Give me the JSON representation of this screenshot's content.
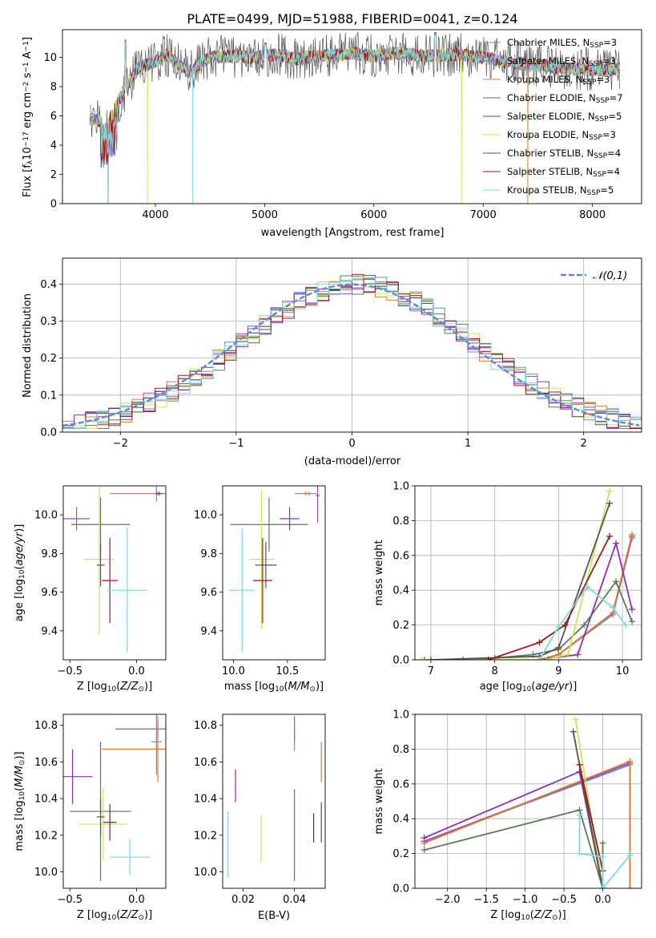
{
  "title": "PLATE=0499, MJD=51988, FIBERID=0041, z=0.124",
  "colors": {
    "Chabrier MILES": "#5b8ed6",
    "Salpeter MILES": "#9b4fc3",
    "Kroupa MILES": "#e07b2b",
    "Chabrier ELODIE": "#5a7a5a",
    "Salpeter ELODIE": "#8b2fb3",
    "Kroupa ELODIE": "#cde25a",
    "Chabrier STELIB": "#555555",
    "Salpeter STELIB": "#a01818",
    "Kroupa STELIB": "#7ed8dc"
  },
  "chart_data": [
    {
      "type": "line",
      "panel": "spectrum",
      "xlabel": "wavelength [Angstrom, rest frame]",
      "ylabel": "Flux [fλ10⁻¹⁷ erg cm⁻² s⁻¹ A⁻¹]",
      "xlim": [
        3150,
        8450
      ],
      "ylim": [
        0,
        11.9
      ],
      "xticks": [
        4000,
        5000,
        6000,
        7000,
        8000
      ],
      "yticks": [
        0,
        2,
        4,
        6,
        8,
        10
      ],
      "legend_position": "right",
      "legend": [
        "Chabrier MILES, N_SSP=3",
        "Salpeter MILES, N_SSP=3",
        "Kroupa MILES, N_SSP=3",
        "Chabrier ELODIE, N_SSP=7",
        "Salpeter ELODIE, N_SSP=5",
        "Kroupa ELODIE, N_SSP=3",
        "Chabrier STELIB, N_SSP=4",
        "Salpeter STELIB, N_SSP=4",
        "Kroupa STELIB, N_SSP=5"
      ],
      "spectrum_points": [
        [
          3400,
          5.8
        ],
        [
          3550,
          5.6
        ],
        [
          3700,
          7.5
        ],
        [
          3850,
          9.3
        ],
        [
          4000,
          9.7
        ],
        [
          4100,
          10.2
        ],
        [
          4300,
          9.0
        ],
        [
          4500,
          10.0
        ],
        [
          4700,
          10.1
        ],
        [
          4900,
          10.0
        ],
        [
          5100,
          10.2
        ],
        [
          5300,
          9.9
        ],
        [
          5500,
          10.1
        ],
        [
          5800,
          10.3
        ],
        [
          6000,
          10.1
        ],
        [
          6200,
          10.3
        ],
        [
          6500,
          10.1
        ],
        [
          6800,
          10.2
        ],
        [
          7000,
          10.0
        ],
        [
          7300,
          9.6
        ],
        [
          7600,
          9.4
        ],
        [
          7900,
          9.2
        ],
        [
          8200,
          9.2
        ]
      ],
      "emission_peaks": [
        [
          3727,
          11.2
        ],
        [
          4861,
          10.9
        ],
        [
          5007,
          11.0
        ],
        [
          6563,
          11.7
        ]
      ],
      "dips_to_zero": [
        [
          3570,
          "Chabrier MILES"
        ],
        [
          3930,
          "Kroupa ELODIE"
        ],
        [
          4340,
          "Kroupa STELIB"
        ],
        [
          6800,
          "Kroupa ELODIE"
        ],
        [
          7410,
          "Kroupa MILES"
        ]
      ]
    },
    {
      "type": "line",
      "panel": "residual-histogram",
      "xlabel": "(data-model)/error",
      "ylabel": "Normed distribution",
      "xlim": [
        -2.5,
        2.5
      ],
      "ylim": [
        0,
        0.47
      ],
      "xticks": [
        -2,
        -1,
        0,
        1,
        2
      ],
      "yticks": [
        0.0,
        0.1,
        0.2,
        0.3,
        0.4
      ],
      "grid": true,
      "legend": [
        "𝒩(0,1)"
      ],
      "legend_position": "top-right"
    },
    {
      "type": "scatter",
      "panel": "age-vs-Z",
      "xlabel": "Z [log10(Z/Z⊙)]",
      "ylabel": "age  [log10(age/yr)]",
      "xlim": [
        -0.55,
        0.22
      ],
      "ylim": [
        9.25,
        10.15
      ],
      "xticks": [
        -0.5,
        0.0
      ],
      "yticks": [
        9.4,
        9.6,
        9.8,
        10.0
      ],
      "points": [
        {
          "model": "Chabrier MILES",
          "x": 0.15,
          "y": 10.11,
          "xerr": 0.02,
          "yerr": 0.04
        },
        {
          "model": "Salpeter MILES",
          "x": -0.45,
          "y": 9.98,
          "xerr": 0.1,
          "yerr": 0.06
        },
        {
          "model": "Kroupa MILES",
          "x": 0.16,
          "y": 10.11,
          "xerr": 0.36,
          "yerr": 0.01
        },
        {
          "model": "Chabrier ELODIE",
          "x": -0.27,
          "y": 9.95,
          "xerr": 0.22,
          "yerr": 0.14
        },
        {
          "model": "Salpeter ELODIE",
          "x": 0.17,
          "y": 10.11,
          "xerr": 0.03,
          "yerr": 0.01
        },
        {
          "model": "Kroupa ELODIE",
          "x": -0.28,
          "y": 9.77,
          "xerr": 0.11,
          "yerr": 0.39
        },
        {
          "model": "Chabrier STELIB",
          "x": -0.27,
          "y": 9.74,
          "xerr": 0.03,
          "yerr": 0.11
        },
        {
          "model": "Salpeter STELIB",
          "x": -0.2,
          "y": 9.66,
          "xerr": 0.06,
          "yerr": 0.22
        },
        {
          "model": "Kroupa STELIB",
          "x": -0.07,
          "y": 9.61,
          "xerr": 0.15,
          "yerr": 0.32
        }
      ]
    },
    {
      "type": "scatter",
      "panel": "age-vs-mass",
      "xlabel": "mass [log10(M/M⊙)]",
      "xlim": [
        9.9,
        10.85
      ],
      "ylim": [
        9.25,
        10.15
      ],
      "xticks": [
        10.0,
        10.5
      ],
      "yticks": [
        9.4,
        9.6,
        9.8,
        10.0
      ],
      "points": [
        {
          "model": "Chabrier MILES",
          "x": 10.7,
          "y": 10.11,
          "xerr": 0.03,
          "yerr": 0.01
        },
        {
          "model": "Salpeter MILES",
          "x": 10.78,
          "y": 10.1,
          "xerr": 0.02,
          "yerr": 0.14
        },
        {
          "model": "Kroupa MILES",
          "x": 10.67,
          "y": 10.11,
          "xerr": 0.1,
          "yerr": 0.01
        },
        {
          "model": "Chabrier ELODIE",
          "x": 10.33,
          "y": 9.95,
          "xerr": 0.36,
          "yerr": 0.14
        },
        {
          "model": "Salpeter ELODIE",
          "x": 10.52,
          "y": 9.98,
          "xerr": 0.09,
          "yerr": 0.06
        },
        {
          "model": "Kroupa ELODIE",
          "x": 10.26,
          "y": 9.77,
          "xerr": 0.12,
          "yerr": 0.36
        },
        {
          "model": "Chabrier STELIB",
          "x": 10.3,
          "y": 9.74,
          "xerr": 0.1,
          "yerr": 0.12
        },
        {
          "model": "Salpeter STELIB",
          "x": 10.27,
          "y": 9.66,
          "xerr": 0.09,
          "yerr": 0.22
        },
        {
          "model": "Kroupa STELIB",
          "x": 10.08,
          "y": 9.61,
          "xerr": 0.12,
          "yerr": 0.32
        }
      ]
    },
    {
      "type": "line",
      "panel": "mass-weight-vs-age",
      "xlabel": "age  [log10(age/yr)]",
      "ylabel": "mass weight",
      "xlim": [
        6.75,
        10.3
      ],
      "ylim": [
        0,
        1.0
      ],
      "xticks": [
        7,
        8,
        9,
        10
      ],
      "yticks": [
        0.0,
        0.2,
        0.4,
        0.6,
        0.8,
        1.0
      ],
      "grid": true,
      "series": [
        {
          "model": "Chabrier MILES",
          "x": [
            8.7,
            9.0,
            9.85,
            10.15
          ],
          "y": [
            0.0,
            0.03,
            0.26,
            0.7
          ]
        },
        {
          "model": "Salpeter MILES",
          "x": [
            8.7,
            9.0,
            9.85,
            10.15
          ],
          "y": [
            0.0,
            0.03,
            0.27,
            0.71
          ]
        },
        {
          "model": "Kroupa MILES",
          "x": [
            8.7,
            9.0,
            9.85,
            10.15
          ],
          "y": [
            0.0,
            0.03,
            0.27,
            0.72
          ]
        },
        {
          "model": "Chabrier ELODIE",
          "x": [
            6.9,
            7.5,
            8.0,
            8.6,
            9.0,
            9.4,
            9.9,
            10.15
          ],
          "y": [
            0.0,
            0.0,
            0.01,
            0.03,
            0.06,
            0.2,
            0.45,
            0.22
          ]
        },
        {
          "model": "Salpeter ELODIE",
          "x": [
            8.7,
            9.3,
            9.9,
            10.15
          ],
          "y": [
            0.0,
            0.03,
            0.67,
            0.29
          ]
        },
        {
          "model": "Kroupa ELODIE",
          "x": [
            6.85,
            8.8,
            9.15,
            9.8
          ],
          "y": [
            0.0,
            0.0,
            0.03,
            0.97
          ]
        },
        {
          "model": "Chabrier STELIB",
          "x": [
            7.0,
            8.7,
            9.0,
            9.8
          ],
          "y": [
            0.0,
            0.02,
            0.07,
            0.9
          ]
        },
        {
          "model": "Salpeter STELIB",
          "x": [
            7.9,
            8.7,
            9.1,
            9.8
          ],
          "y": [
            0.0,
            0.1,
            0.2,
            0.71
          ]
        },
        {
          "model": "Kroupa STELIB",
          "x": [
            8.7,
            9.0,
            9.45,
            9.85,
            10.05
          ],
          "y": [
            0.0,
            0.19,
            0.42,
            0.3,
            0.2
          ]
        }
      ]
    },
    {
      "type": "scatter",
      "panel": "mass-vs-Z",
      "xlabel": "Z [log10(Z/Z⊙)]",
      "ylabel": "mass [log10(M/M⊙)]",
      "xlim": [
        -0.55,
        0.22
      ],
      "ylim": [
        9.91,
        10.86
      ],
      "xticks": [
        -0.5,
        0.0
      ],
      "yticks": [
        10.0,
        10.2,
        10.4,
        10.6,
        10.8
      ],
      "points": [
        {
          "model": "Chabrier MILES",
          "x": 0.15,
          "y": 10.71,
          "xerr": 0.04,
          "yerr": 0.18
        },
        {
          "model": "Salpeter MILES",
          "x": 0.16,
          "y": 10.78,
          "xerr": 0.32,
          "yerr": 0.04
        },
        {
          "model": "Kroupa MILES",
          "x": 0.16,
          "y": 10.67,
          "xerr": 0.42,
          "yerr": 0.18
        },
        {
          "model": "Chabrier ELODIE",
          "x": -0.27,
          "y": 10.33,
          "xerr": 0.23,
          "yerr": 0.38
        },
        {
          "model": "Salpeter ELODIE",
          "x": -0.48,
          "y": 10.52,
          "xerr": 0.15,
          "yerr": 0.15
        },
        {
          "model": "Kroupa ELODIE",
          "x": -0.25,
          "y": 10.26,
          "xerr": 0.18,
          "yerr": 0.2
        },
        {
          "model": "Chabrier STELIB",
          "x": -0.27,
          "y": 10.3,
          "xerr": 0.03,
          "yerr": 0.1
        },
        {
          "model": "Salpeter STELIB",
          "x": -0.2,
          "y": 10.27,
          "xerr": 0.05,
          "yerr": 0.1
        },
        {
          "model": "Kroupa STELIB",
          "x": -0.05,
          "y": 10.08,
          "xerr": 0.15,
          "yerr": 0.1
        }
      ]
    },
    {
      "type": "scatter",
      "panel": "mass-vs-EBV",
      "xlabel": "E(B-V)",
      "xlim": [
        0.012,
        0.052
      ],
      "ylim": [
        9.91,
        10.86
      ],
      "xticks": [
        0.02,
        0.04
      ],
      "yticks": [
        10.0,
        10.2,
        10.4,
        10.6,
        10.8
      ],
      "points": [
        {
          "model": "Chabrier MILES",
          "x": 0.04,
          "y": 10.71,
          "yerr": 0.05
        },
        {
          "model": "Salpeter MILES",
          "x": 0.04,
          "y": 10.78,
          "yerr": 0.07
        },
        {
          "model": "Kroupa MILES",
          "x": 0.0505,
          "y": 10.6,
          "yerr": 0.11
        },
        {
          "model": "Chabrier ELODIE",
          "x": 0.04,
          "y": 10.2,
          "yerr": 0.25
        },
        {
          "model": "Salpeter ELODIE",
          "x": 0.017,
          "y": 10.47,
          "yerr": 0.09
        },
        {
          "model": "Kroupa ELODIE",
          "x": 0.027,
          "y": 10.18,
          "yerr": 0.13
        },
        {
          "model": "Chabrier STELIB",
          "x": 0.0505,
          "y": 10.27,
          "yerr": 0.11
        },
        {
          "model": "Salpeter STELIB",
          "x": 0.0475,
          "y": 10.24,
          "yerr": 0.08
        },
        {
          "model": "Kroupa STELIB",
          "x": 0.014,
          "y": 10.15,
          "yerr": 0.18
        }
      ]
    },
    {
      "type": "line",
      "panel": "mass-weight-vs-Z",
      "xlabel": "Z [log10(Z/Z⊙)]",
      "ylabel": "mass weight",
      "xlim": [
        -2.42,
        0.5
      ],
      "ylim": [
        0,
        1.0
      ],
      "xticks": [
        -2.0,
        -1.5,
        -1.0,
        -0.5,
        0.0
      ],
      "yticks": [
        0.0,
        0.2,
        0.4,
        0.6,
        0.8,
        1.0
      ],
      "grid": true,
      "series": [
        {
          "model": "Chabrier MILES",
          "x": [
            -2.3,
            0.35,
            0.35
          ],
          "y": [
            0.27,
            0.71,
            0.0
          ]
        },
        {
          "model": "Salpeter MILES",
          "x": [
            -2.3,
            0.35,
            0.35
          ],
          "y": [
            0.27,
            0.72,
            0.0
          ]
        },
        {
          "model": "Kroupa MILES",
          "x": [
            -2.3,
            0.35,
            0.35
          ],
          "y": [
            0.26,
            0.73,
            0.0
          ]
        },
        {
          "model": "Chabrier ELODIE",
          "x": [
            -2.3,
            -0.3,
            0.0,
            0.0
          ],
          "y": [
            0.22,
            0.45,
            0.0,
            0.26
          ]
        },
        {
          "model": "Salpeter ELODIE",
          "x": [
            -2.3,
            -0.3,
            0.0
          ],
          "y": [
            0.29,
            0.67,
            0.0
          ]
        },
        {
          "model": "Kroupa ELODIE",
          "x": [
            -0.35,
            0.0
          ],
          "y": [
            0.97,
            0.0
          ]
        },
        {
          "model": "Chabrier STELIB",
          "x": [
            -0.38,
            0.0
          ],
          "y": [
            0.9,
            0.0
          ]
        },
        {
          "model": "Salpeter STELIB",
          "x": [
            -0.3,
            0.0
          ],
          "y": [
            0.71,
            0.1
          ]
        },
        {
          "model": "Kroupa STELIB",
          "x": [
            -0.3,
            -0.3,
            0.0,
            0.0,
            0.35
          ],
          "y": [
            0.42,
            0.2,
            0.18,
            0.0,
            0.19
          ]
        }
      ]
    }
  ]
}
